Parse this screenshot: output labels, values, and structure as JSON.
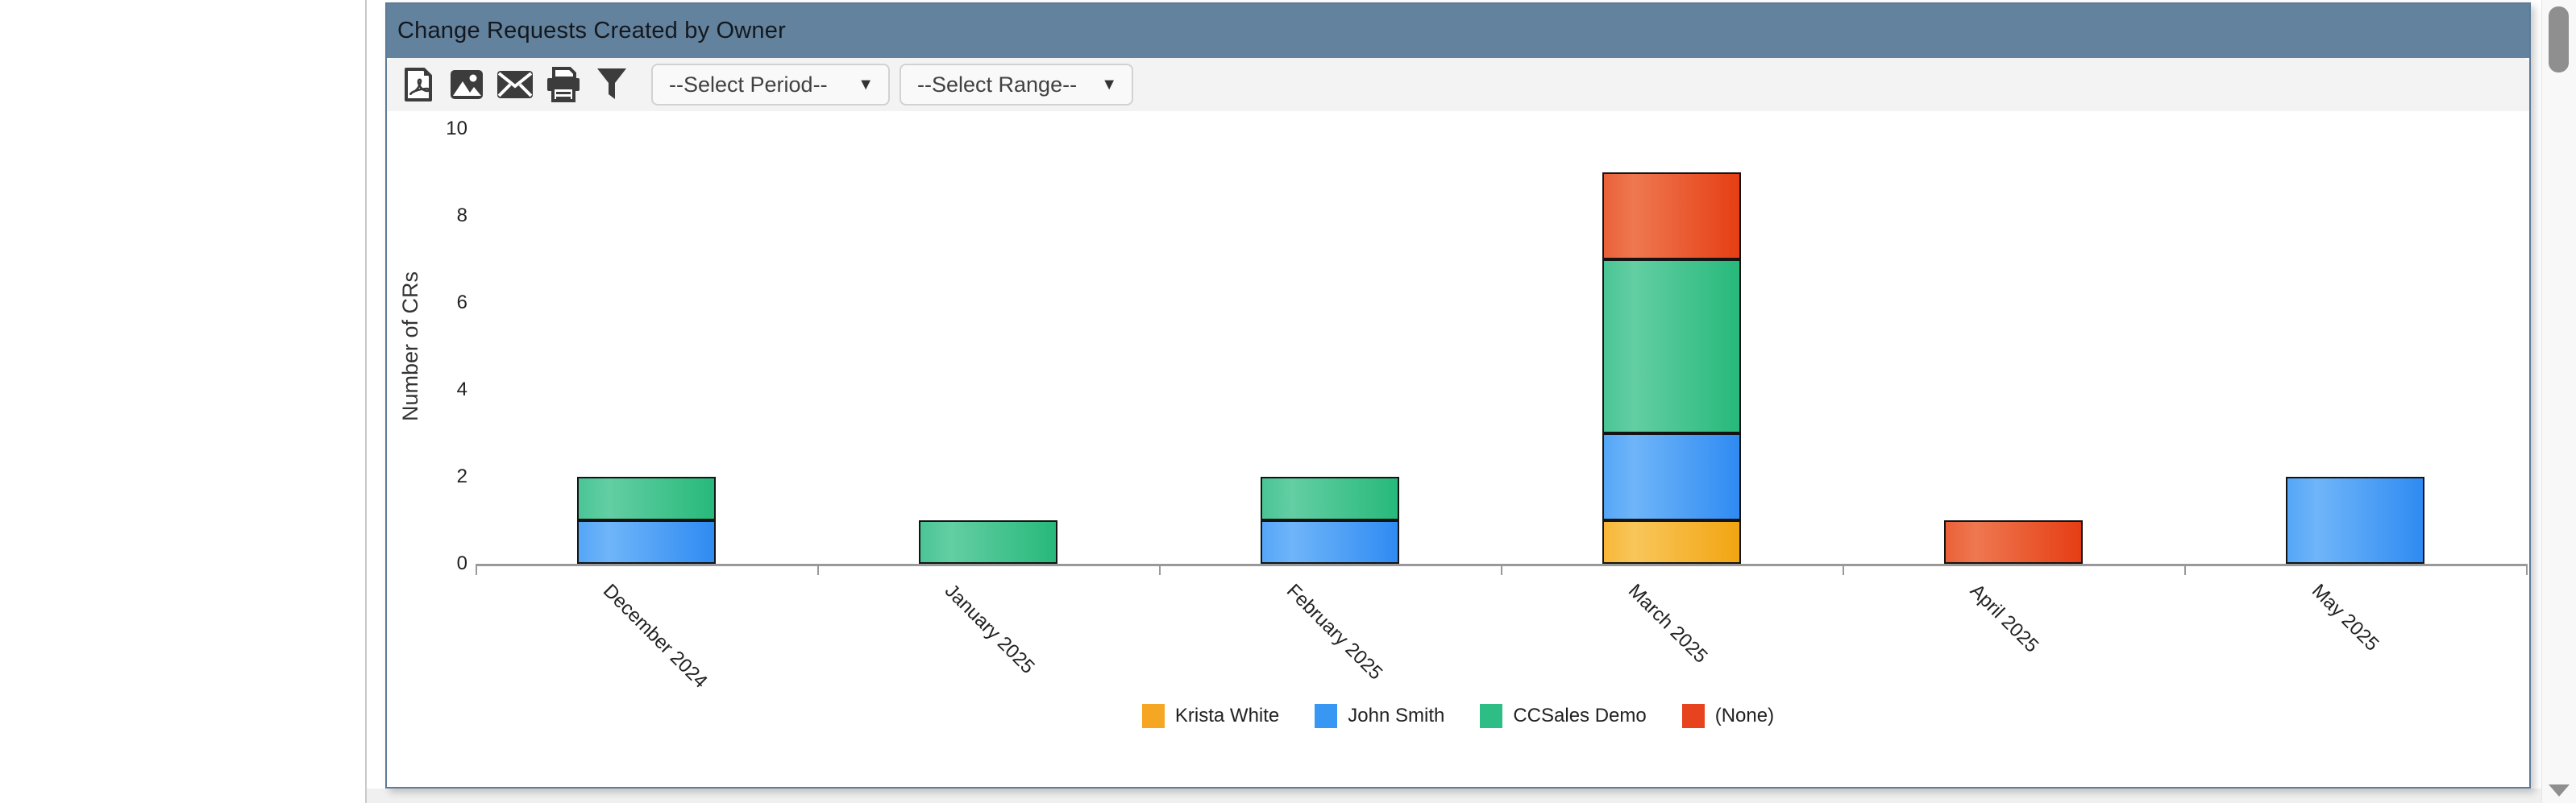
{
  "panel": {
    "title": "Change Requests Created by Owner",
    "title_bar_color": "#62829e",
    "border_color": "#5b7b96"
  },
  "toolbar": {
    "icons": [
      "pdf-export-icon",
      "image-export-icon",
      "email-icon",
      "print-icon",
      "filter-icon"
    ],
    "period_select": {
      "value": "--Select Period--",
      "chevron": "▼"
    },
    "range_select": {
      "value": "--Select Range--",
      "chevron": "▼"
    }
  },
  "chart_data": {
    "type": "bar",
    "stacked": true,
    "title": "",
    "xlabel": "",
    "ylabel": "Number of CRs",
    "ylim": [
      0,
      10
    ],
    "yticks": [
      0,
      2,
      4,
      6,
      8,
      10
    ],
    "grid": false,
    "legend_position": "bottom",
    "categories": [
      "December 2024",
      "January 2025",
      "February 2025",
      "March 2025",
      "April 2025",
      "May 2025"
    ],
    "series": [
      {
        "name": "Krista White",
        "color": "#F5A623",
        "gradient": [
          "#F7B637",
          "#F9C65A",
          "#F2A512"
        ],
        "values": [
          0,
          0,
          0,
          1,
          0,
          0
        ]
      },
      {
        "name": "John Smith",
        "color": "#3897F3",
        "gradient": [
          "#54A6F7",
          "#6FB5F9",
          "#2F8BF2"
        ],
        "values": [
          1,
          0,
          1,
          2,
          0,
          2
        ]
      },
      {
        "name": "CCSales Demo",
        "color": "#2EBD85",
        "gradient": [
          "#4AC595",
          "#63CEA3",
          "#27B97B"
        ],
        "values": [
          1,
          1,
          1,
          4,
          0,
          0
        ]
      },
      {
        "name": "(None)",
        "color": "#E8431F",
        "gradient": [
          "#EA6038",
          "#EE7850",
          "#E63E14"
        ],
        "values": [
          0,
          0,
          0,
          2,
          1,
          0
        ]
      }
    ]
  }
}
